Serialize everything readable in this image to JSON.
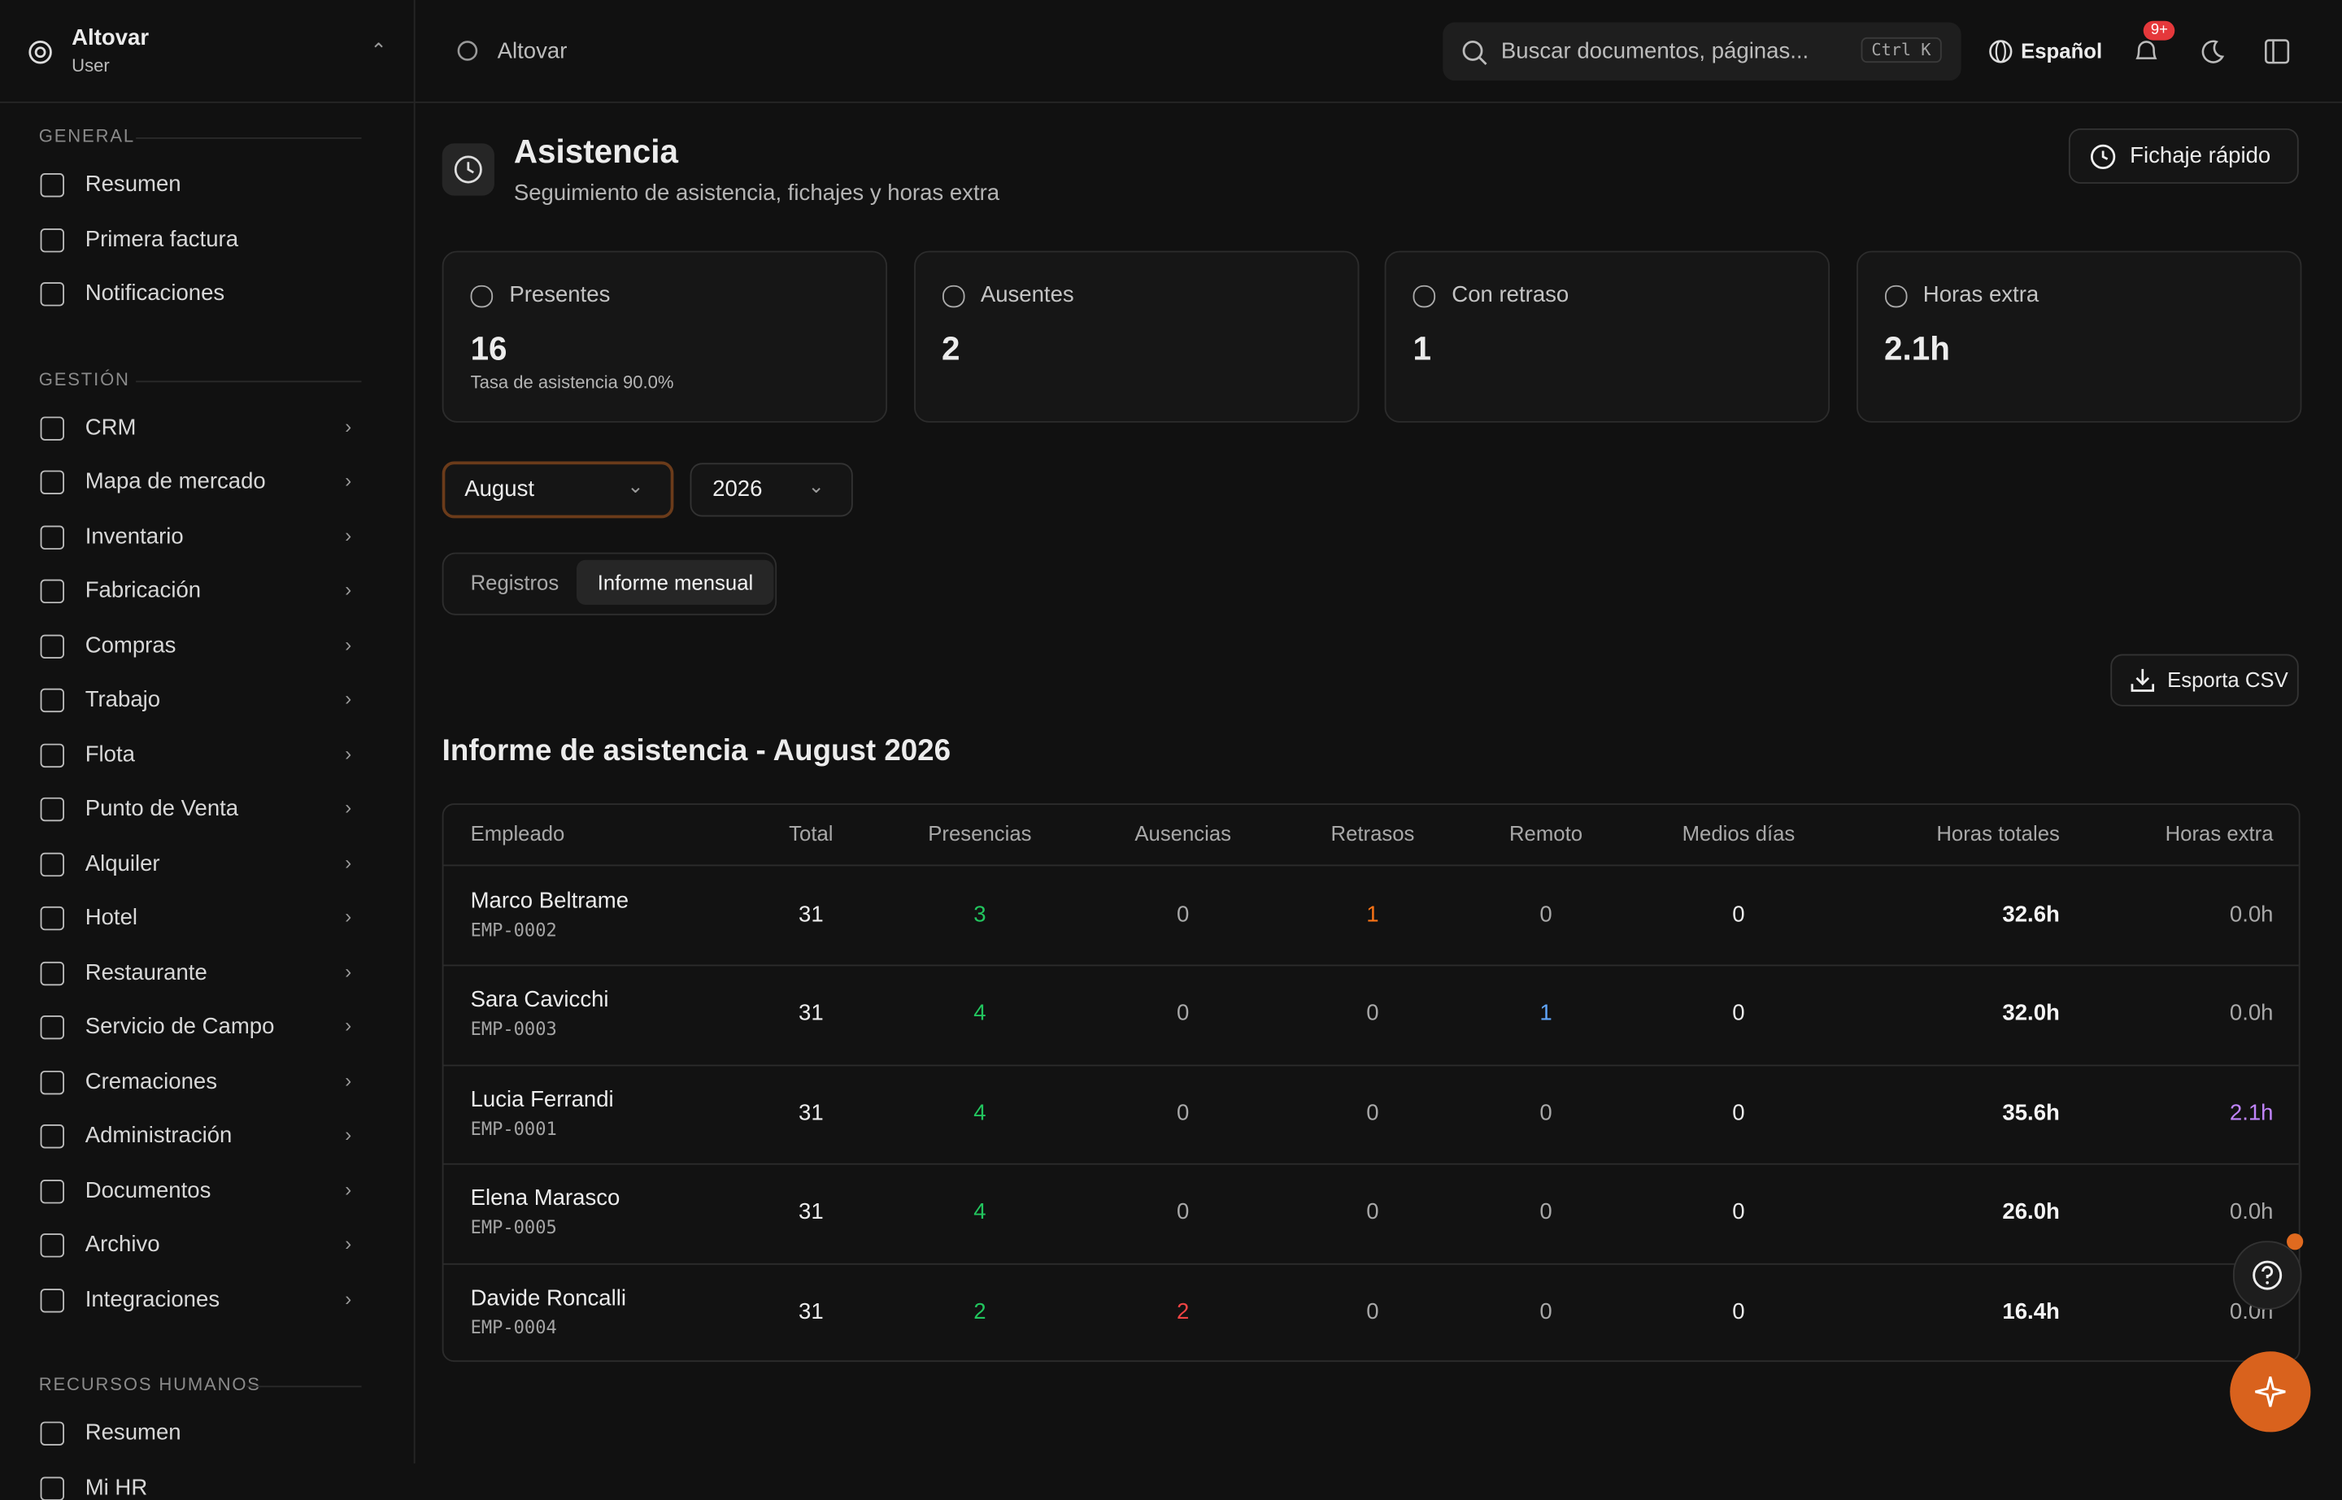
{
  "sidebar": {
    "brand": {
      "name": "Altovar",
      "role": "User"
    },
    "sections": [
      {
        "title": "GENERAL",
        "items": [
          "Resumen",
          "Primera factura",
          "Notificaciones"
        ],
        "expandable": false
      },
      {
        "title": "GESTIÓN",
        "items": [
          "CRM",
          "Mapa de mercado",
          "Inventario",
          "Fabricación",
          "Compras",
          "Trabajo",
          "Flota",
          "Punto de Venta",
          "Alquiler",
          "Hotel",
          "Restaurante",
          "Servicio de Campo",
          "Cremaciones",
          "Administración",
          "Documentos",
          "Archivo",
          "Integraciones"
        ],
        "expandable": true
      },
      {
        "title": "RECURSOS HUMANOS",
        "items": [
          "Resumen",
          "Mi HR"
        ],
        "expandable": false
      }
    ]
  },
  "header": {
    "breadcrumb": "Altovar",
    "search": "Buscar documentos, páginas...",
    "shortcut": "Ctrl K",
    "language": "Español",
    "badge": "9+"
  },
  "page": {
    "title": "Asistencia",
    "subtitle": "Seguimiento de asistencia, fichajes y horas extra",
    "action": "Fichaje rápido"
  },
  "stats": [
    {
      "label": "Presentes",
      "value": "16",
      "note": "Tasa de asistencia 90.0%"
    },
    {
      "label": "Ausentes",
      "value": "2"
    },
    {
      "label": "Con retraso",
      "value": "1"
    },
    {
      "label": "Horas extra",
      "value": "2.1h"
    }
  ],
  "filters": {
    "month": "August",
    "year": "2026"
  },
  "tabs": {
    "items": [
      "Registros",
      "Informe mensual"
    ],
    "active": 1
  },
  "export": "Esporta CSV",
  "report": {
    "title": "Informe de asistencia - August 2026",
    "columns": [
      "Empleado",
      "Total",
      "Presencias",
      "Ausencias",
      "Retrasos",
      "Remoto",
      "Medios días",
      "Horas totales",
      "Horas extra"
    ],
    "rows": [
      [
        "Marco Beltrame",
        "EMP-0002",
        31,
        3,
        0,
        1,
        0,
        0,
        "32.6h",
        "0.0h"
      ],
      [
        "Sara Cavicchi",
        "EMP-0003",
        31,
        4,
        0,
        0,
        1,
        0,
        "32.0h",
        "0.0h"
      ],
      [
        "Lucia Ferrandi",
        "EMP-0001",
        31,
        4,
        0,
        0,
        0,
        0,
        "35.6h",
        "2.1h"
      ],
      [
        "Elena Marasco",
        "EMP-0005",
        31,
        4,
        0,
        0,
        0,
        0,
        "26.0h",
        "0.0h"
      ],
      [
        "Davide Roncalli",
        "EMP-0004",
        31,
        2,
        2,
        0,
        0,
        0,
        "16.4h",
        "0.0h"
      ]
    ]
  }
}
